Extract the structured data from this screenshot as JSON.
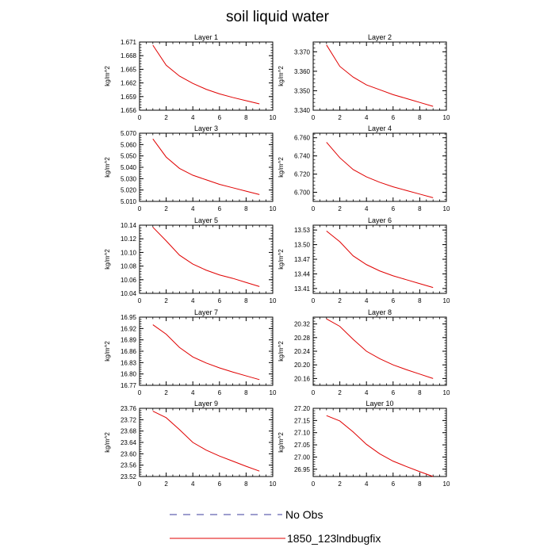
{
  "title": "soil liquid water",
  "legend": {
    "items": [
      {
        "label": "No Obs",
        "color": "#3b3b9e",
        "style": "dashed"
      },
      {
        "label": "1850_123lndbugfix",
        "color": "#e00000",
        "style": "solid"
      }
    ]
  },
  "chart_data": [
    {
      "type": "line",
      "title": "Layer 1",
      "ylabel": "kg/m^2",
      "xlabel": "",
      "xlim": [
        0,
        10
      ],
      "xticks": [
        0,
        2,
        4,
        6,
        8,
        10
      ],
      "ylim": [
        1.656,
        1.671
      ],
      "yticks": [
        "1.656",
        "1.659",
        "1.662",
        "1.665",
        "1.668",
        "1.671"
      ],
      "series": [
        {
          "name": "1850_123lndbugfix",
          "x": [
            1,
            2,
            3,
            4,
            5,
            6,
            7,
            8,
            9
          ],
          "values": [
            1.6703,
            1.6659,
            1.6635,
            1.6619,
            1.6606,
            1.6596,
            1.6588,
            1.6581,
            1.6574
          ]
        }
      ]
    },
    {
      "type": "line",
      "title": "Layer 2",
      "ylabel": "kg/m^2",
      "xlabel": "",
      "xlim": [
        0,
        10
      ],
      "xticks": [
        0,
        2,
        4,
        6,
        8,
        10
      ],
      "ylim": [
        3.34,
        3.375
      ],
      "yticks": [
        "3.340",
        "3.350",
        "3.360",
        "3.370"
      ],
      "series": [
        {
          "name": "1850_123lndbugfix",
          "x": [
            1,
            2,
            3,
            4,
            5,
            6,
            7,
            8,
            9
          ],
          "values": [
            3.3735,
            3.3625,
            3.357,
            3.353,
            3.3505,
            3.348,
            3.346,
            3.344,
            3.342
          ]
        }
      ]
    },
    {
      "type": "line",
      "title": "Layer 3",
      "ylabel": "kg/m^2",
      "xlabel": "",
      "xlim": [
        0,
        10
      ],
      "xticks": [
        0,
        2,
        4,
        6,
        8,
        10
      ],
      "ylim": [
        5.01,
        5.07
      ],
      "yticks": [
        "5.010",
        "5.020",
        "5.030",
        "5.040",
        "5.050",
        "5.060",
        "5.070"
      ],
      "series": [
        {
          "name": "1850_123lndbugfix",
          "x": [
            1,
            2,
            3,
            4,
            5,
            6,
            7,
            8,
            9
          ],
          "values": [
            5.065,
            5.049,
            5.039,
            5.033,
            5.029,
            5.025,
            5.022,
            5.019,
            5.016
          ]
        }
      ]
    },
    {
      "type": "line",
      "title": "Layer 4",
      "ylabel": "kg/m^2",
      "xlabel": "",
      "xlim": [
        0,
        10
      ],
      "xticks": [
        0,
        2,
        4,
        6,
        8,
        10
      ],
      "ylim": [
        6.69,
        6.765
      ],
      "yticks": [
        "6.700",
        "6.720",
        "6.740",
        "6.760"
      ],
      "series": [
        {
          "name": "1850_123lndbugfix",
          "x": [
            1,
            2,
            3,
            4,
            5,
            6,
            7,
            8,
            9
          ],
          "values": [
            6.755,
            6.738,
            6.725,
            6.717,
            6.711,
            6.706,
            6.702,
            6.698,
            6.694
          ]
        }
      ]
    },
    {
      "type": "line",
      "title": "Layer 5",
      "ylabel": "kg/m^2",
      "xlabel": "",
      "xlim": [
        0,
        10
      ],
      "xticks": [
        0,
        2,
        4,
        6,
        8,
        10
      ],
      "ylim": [
        10.04,
        10.14
      ],
      "yticks": [
        "10.04",
        "10.06",
        "10.08",
        "10.10",
        "10.12",
        "10.14"
      ],
      "series": [
        {
          "name": "1850_123lndbugfix",
          "x": [
            1,
            2,
            3,
            4,
            5,
            6,
            7,
            8,
            9
          ],
          "values": [
            10.137,
            10.117,
            10.096,
            10.083,
            10.074,
            10.067,
            10.062,
            10.056,
            10.05
          ]
        }
      ]
    },
    {
      "type": "line",
      "title": "Layer 6",
      "ylabel": "kg/m^2",
      "xlabel": "",
      "xlim": [
        0,
        10
      ],
      "xticks": [
        0,
        2,
        4,
        6,
        8,
        10
      ],
      "ylim": [
        13.4,
        13.54
      ],
      "yticks": [
        "13.41",
        "13.44",
        "13.47",
        "13.50",
        "13.53"
      ],
      "series": [
        {
          "name": "1850_123lndbugfix",
          "x": [
            1,
            2,
            3,
            4,
            5,
            6,
            7,
            8,
            9
          ],
          "values": [
            13.528,
            13.506,
            13.477,
            13.459,
            13.446,
            13.436,
            13.428,
            13.42,
            13.412
          ]
        }
      ]
    },
    {
      "type": "line",
      "title": "Layer 7",
      "ylabel": "kg/m^2",
      "xlabel": "",
      "xlim": [
        0,
        10
      ],
      "xticks": [
        0,
        2,
        4,
        6,
        8,
        10
      ],
      "ylim": [
        16.77,
        16.95
      ],
      "yticks": [
        "16.77",
        "16.80",
        "16.83",
        "16.86",
        "16.89",
        "16.92",
        "16.95"
      ],
      "series": [
        {
          "name": "1850_123lndbugfix",
          "x": [
            1,
            2,
            3,
            4,
            5,
            6,
            7,
            8,
            9
          ],
          "values": [
            16.93,
            16.905,
            16.87,
            16.845,
            16.829,
            16.816,
            16.805,
            16.795,
            16.785
          ]
        }
      ]
    },
    {
      "type": "line",
      "title": "Layer 8",
      "ylabel": "kg/m^2",
      "xlabel": "",
      "xlim": [
        0,
        10
      ],
      "xticks": [
        0,
        2,
        4,
        6,
        8,
        10
      ],
      "ylim": [
        20.14,
        20.34
      ],
      "yticks": [
        "20.16",
        "20.20",
        "20.24",
        "20.28",
        "20.32"
      ],
      "series": [
        {
          "name": "1850_123lndbugfix",
          "x": [
            1,
            2,
            3,
            4,
            5,
            6,
            7,
            8,
            9
          ],
          "values": [
            20.335,
            20.313,
            20.275,
            20.24,
            20.218,
            20.2,
            20.186,
            20.173,
            20.16
          ]
        }
      ]
    },
    {
      "type": "line",
      "title": "Layer 9",
      "ylabel": "kg/m^2",
      "xlabel": "",
      "xlim": [
        0,
        10
      ],
      "xticks": [
        0,
        2,
        4,
        6,
        8,
        10
      ],
      "ylim": [
        23.52,
        23.76
      ],
      "yticks": [
        "23.52",
        "23.56",
        "23.60",
        "23.64",
        "23.68",
        "23.72",
        "23.76"
      ],
      "series": [
        {
          "name": "1850_123lndbugfix",
          "x": [
            1,
            2,
            3,
            4,
            5,
            6,
            7,
            8,
            9
          ],
          "values": [
            23.75,
            23.727,
            23.685,
            23.64,
            23.613,
            23.592,
            23.574,
            23.556,
            23.539
          ]
        }
      ]
    },
    {
      "type": "line",
      "title": "Layer 10",
      "ylabel": "kg/m^2",
      "xlabel": "",
      "xlim": [
        0,
        10
      ],
      "xticks": [
        0,
        2,
        4,
        6,
        8,
        10
      ],
      "ylim": [
        26.92,
        27.2
      ],
      "yticks": [
        "26.95",
        "27.00",
        "27.05",
        "27.10",
        "27.15",
        "27.20"
      ],
      "series": [
        {
          "name": "1850_123lndbugfix",
          "x": [
            1,
            2,
            3,
            4,
            5,
            6,
            7,
            8,
            9
          ],
          "values": [
            27.17,
            27.148,
            27.103,
            27.052,
            27.013,
            26.983,
            26.961,
            26.94,
            26.92
          ]
        }
      ]
    }
  ]
}
